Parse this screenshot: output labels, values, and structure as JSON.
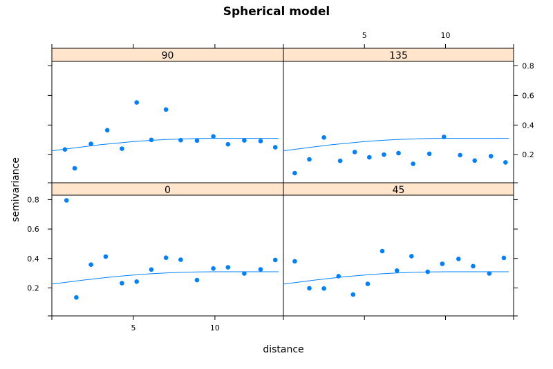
{
  "chart_data": {
    "type": "scatter",
    "title": "Spherical model",
    "xlabel": "distance",
    "ylabel": "semivariance",
    "xlim": [
      0,
      14.2
    ],
    "ylim": [
      0.01,
      0.83
    ],
    "x_ticks": [
      5,
      10
    ],
    "y_ticks": [
      0.2,
      0.4,
      0.6,
      0.8
    ],
    "colors": {
      "points": "#0080ff",
      "line": "#0080ff",
      "strip": "#ffe5cc",
      "frame": "#000000"
    },
    "fitted_curve": {
      "x": [
        0,
        1,
        2,
        3,
        4,
        5,
        6,
        7,
        8,
        9,
        10,
        11,
        12,
        13,
        13.9
      ],
      "y": [
        0.226,
        0.24,
        0.254,
        0.267,
        0.278,
        0.288,
        0.296,
        0.302,
        0.306,
        0.309,
        0.31,
        0.31,
        0.31,
        0.31,
        0.31
      ]
    },
    "panels": [
      {
        "label": "90",
        "x": [
          0.8,
          1.4,
          2.4,
          3.4,
          4.3,
          5.2,
          6.1,
          7.0,
          7.9,
          8.9,
          9.9,
          10.8,
          11.8,
          12.8,
          13.7
        ],
        "y": [
          0.235,
          0.108,
          0.273,
          0.365,
          0.24,
          0.553,
          0.3,
          0.505,
          0.298,
          0.295,
          0.323,
          0.27,
          0.296,
          0.292,
          0.25
        ]
      },
      {
        "label": "135",
        "x": [
          0.7,
          1.6,
          2.5,
          3.5,
          4.4,
          5.3,
          6.2,
          7.1,
          8.0,
          9.0,
          9.9,
          10.9,
          11.8,
          12.8,
          13.7
        ],
        "y": [
          0.075,
          0.168,
          0.316,
          0.158,
          0.218,
          0.182,
          0.2,
          0.21,
          0.138,
          0.206,
          0.32,
          0.197,
          0.16,
          0.19,
          0.148
        ]
      },
      {
        "label": "0",
        "x": [
          0.9,
          1.5,
          2.4,
          3.3,
          4.3,
          5.2,
          6.1,
          7.0,
          7.9,
          8.9,
          9.9,
          10.8,
          11.8,
          12.8,
          13.7
        ],
        "y": [
          0.795,
          0.135,
          0.358,
          0.413,
          0.232,
          0.243,
          0.325,
          0.405,
          0.392,
          0.253,
          0.332,
          0.34,
          0.298,
          0.326,
          0.39
        ]
      },
      {
        "label": "45",
        "x": [
          0.7,
          1.6,
          2.5,
          3.4,
          4.3,
          5.2,
          6.1,
          7.0,
          7.9,
          8.9,
          9.8,
          10.8,
          11.7,
          12.7,
          13.6
        ],
        "y": [
          0.381,
          0.198,
          0.196,
          0.28,
          0.155,
          0.228,
          0.45,
          0.318,
          0.416,
          0.31,
          0.364,
          0.397,
          0.348,
          0.298,
          0.404
        ]
      }
    ]
  }
}
